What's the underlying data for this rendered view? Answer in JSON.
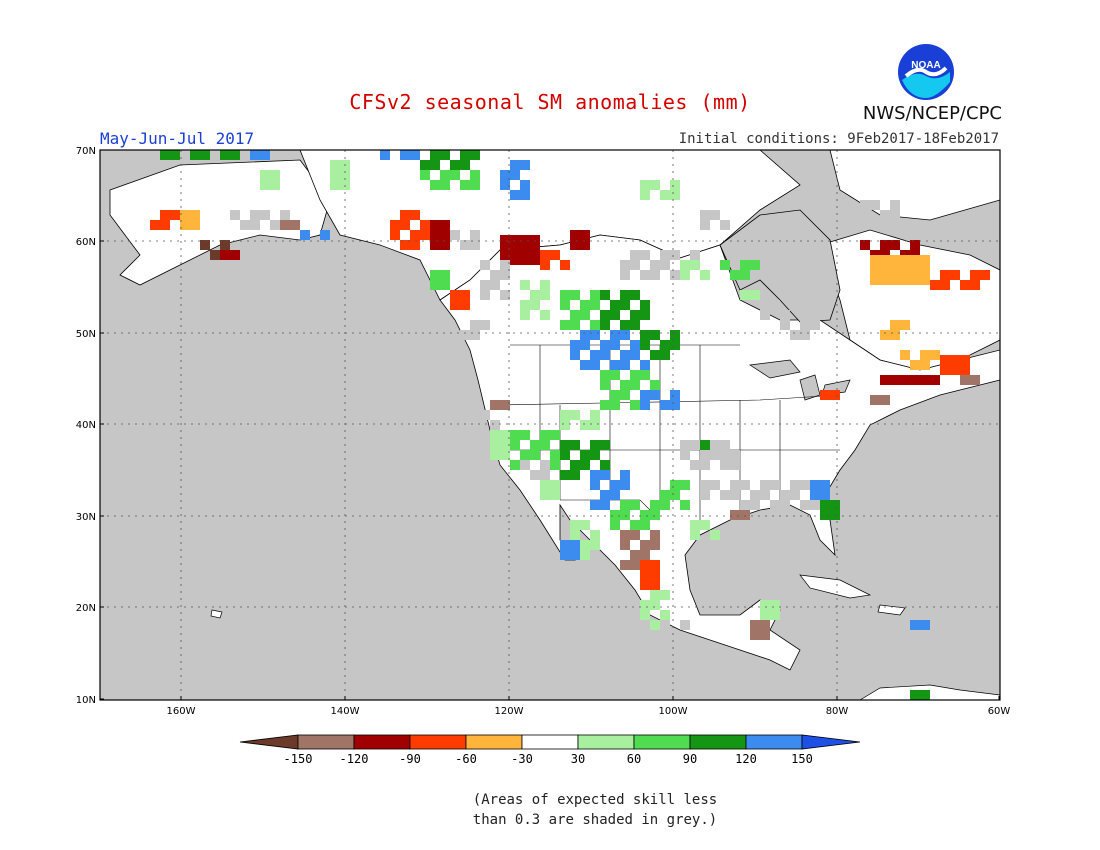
{
  "title": "CFSv2 seasonal SM anomalies (mm)",
  "period": "May-Jun-Jul 2017",
  "initial_conditions": "Initial conditions: 9Feb2017-18Feb2017",
  "agency": "NWS/NCEP/CPC",
  "logo_text": "NOAA",
  "footnote": {
    "line1": "(Areas of expected skill less",
    "line2": "than 0.3 are shaded in grey.)"
  },
  "map": {
    "lat_ticks": [
      "70N",
      "60N",
      "50N",
      "40N",
      "30N",
      "20N",
      "10N"
    ],
    "lon_ticks": [
      "160W",
      "140W",
      "120W",
      "100W",
      "80W",
      "60W"
    ],
    "ocean_color": "#c6c6c6",
    "land_color": "#ffffff"
  },
  "legend": {
    "labels": [
      "-150",
      "-120",
      "-90",
      "-60",
      "-30",
      "30",
      "60",
      "90",
      "120",
      "150"
    ],
    "colors": [
      "#6b3a2a",
      "#a07466",
      "#a00000",
      "#ff3c00",
      "#ffb43c",
      "#ffffff",
      "#a8f0a0",
      "#50dc50",
      "#149614",
      "#3c8cf0",
      "#1e50e6"
    ]
  }
}
